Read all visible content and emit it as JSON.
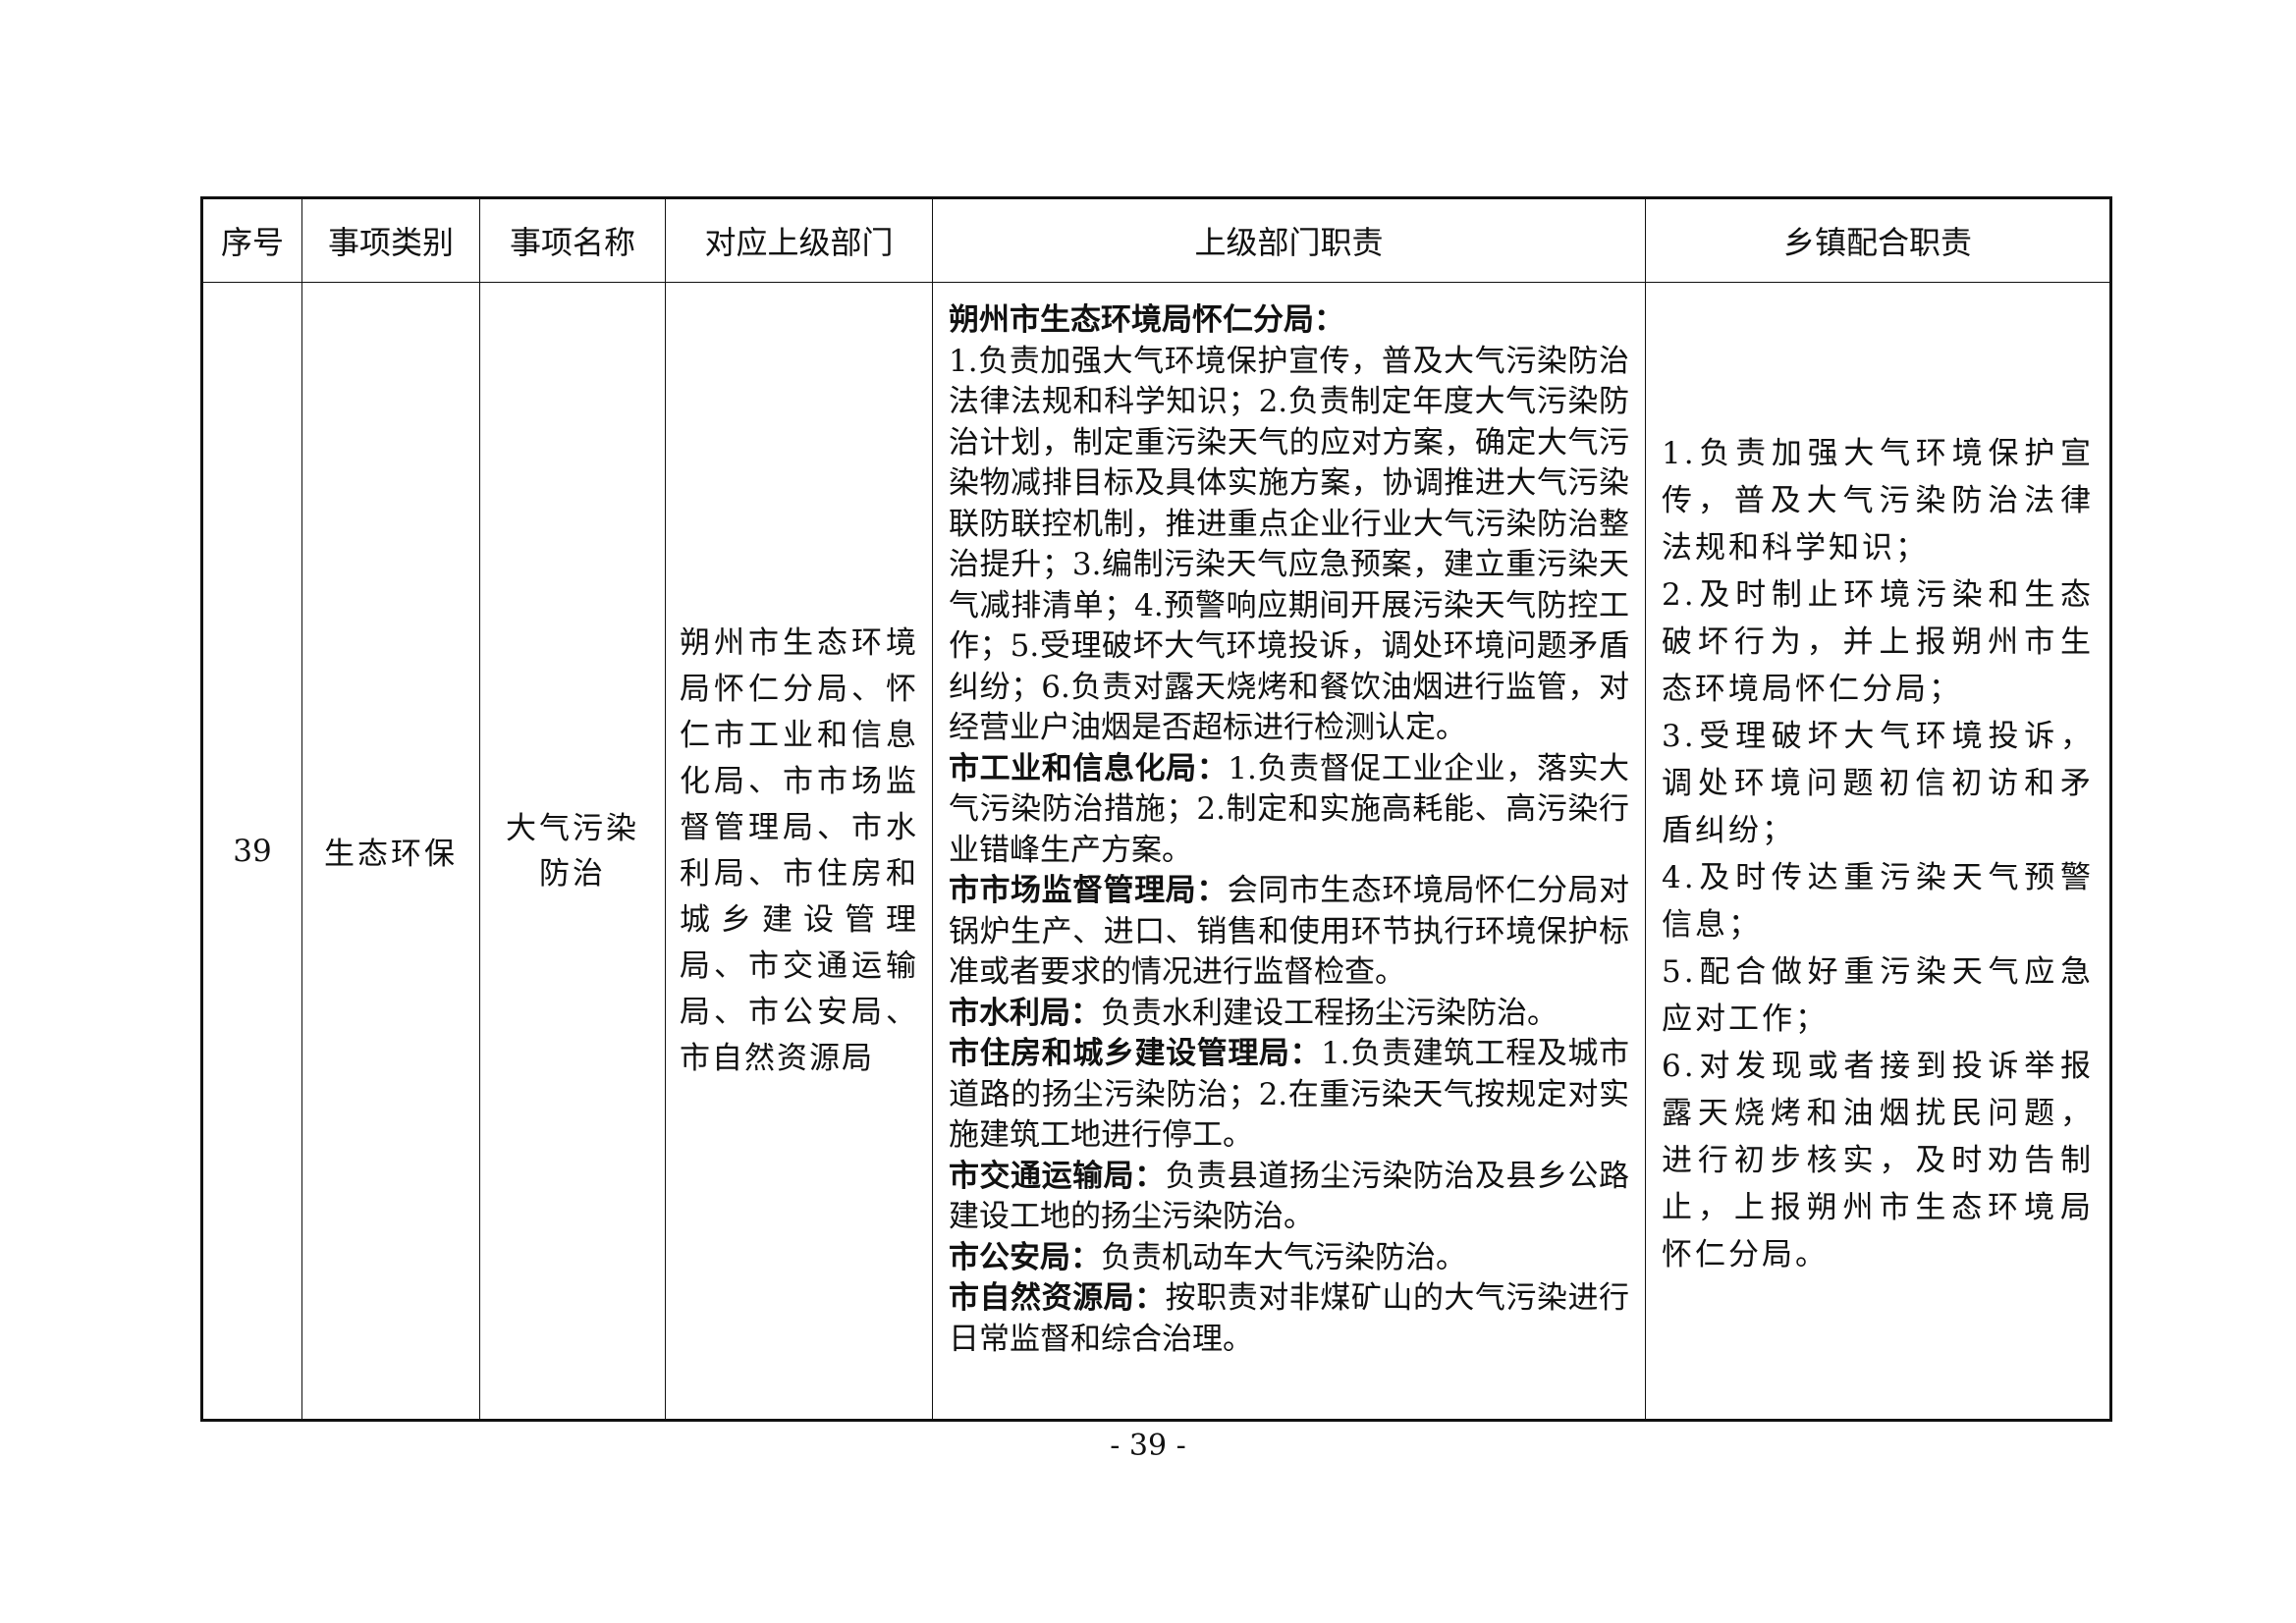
{
  "headers": [
    "序号",
    "事项类别",
    "事项名称",
    "对应上级部门",
    "上级部门职责",
    "乡镇配合职责"
  ],
  "row": {
    "index": "39",
    "category": "生态环保",
    "name": "大气污染防治",
    "departments": "朔州市生态环境局怀仁分局、怀仁市工业和信息化局、市市场监督管理局、市水利局、市住房和城乡建设管理局、市交通运输局、市公安局、市自然资源局",
    "duties": [
      {
        "dept": "朔州市生态环境局怀仁分局：",
        "text": "1.负责加强大气环境保护宣传，普及大气污染防治法律法规和科学知识；2.负责制定年度大气污染防治计划，制定重污染天气的应对方案，确定大气污染物减排目标及具体实施方案，协调推进大气污染联防联控机制，推进重点企业行业大气污染防治整治提升；3.编制污染天气应急预案，建立重污染天气减排清单；4.预警响应期间开展污染天气防控工作；5.受理破坏大气环境投诉，调处环境问题矛盾纠纷；6.负责对露天烧烤和餐饮油烟进行监管，对经营业户油烟是否超标进行检测认定。"
      },
      {
        "dept": "市工业和信息化局：",
        "text": "1.负责督促工业企业，落实大气污染防治措施；2.制定和实施高耗能、高污染行业错峰生产方案。"
      },
      {
        "dept": "市市场监督管理局：",
        "text": "会同市生态环境局怀仁分局对锅炉生产、进口、销售和使用环节执行环境保护标准或者要求的情况进行监督检查。"
      },
      {
        "dept": "市水利局：",
        "text": "负责水利建设工程扬尘污染防治。"
      },
      {
        "dept": "市住房和城乡建设管理局：",
        "text": "1.负责建筑工程及城市道路的扬尘污染防治；2.在重污染天气按规定对实施建筑工地进行停工。"
      },
      {
        "dept": "市交通运输局：",
        "text": "负责县道扬尘污染防治及县乡公路建设工地的扬尘污染防治。"
      },
      {
        "dept": "市公安局：",
        "text": "负责机动车大气污染防治。"
      },
      {
        "dept": "市自然资源局：",
        "text": "按职责对非煤矿山的大气污染进行日常监督和综合治理。"
      }
    ],
    "town_duties": [
      "1.负责加强大气环境保护宣传，普及大气污染防治法律法规和科学知识；",
      "2.及时制止环境污染和生态破坏行为，并上报朔州市生态环境局怀仁分局；",
      "3.受理破坏大气环境投诉，调处环境问题初信初访和矛盾纠纷；",
      "4.及时传达重污染天气预警信息；",
      "5.配合做好重污染天气应急应对工作；",
      "6.对发现或者接到投诉举报露天烧烤和油烟扰民问题，进行初步核实，及时劝告制止，上报朔州市生态环境局怀仁分局。"
    ]
  },
  "page_number": "- 39 -"
}
